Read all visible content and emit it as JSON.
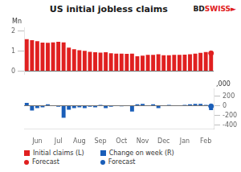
{
  "chart_data": {
    "type": "bar",
    "title": "US initial jobless claims",
    "ylabel": "Mn",
    "y2label": ",000",
    "categories": [
      null,
      null,
      "Jun",
      null,
      null,
      null,
      "Jul",
      null,
      null,
      null,
      "Aug",
      null,
      null,
      null,
      "Sep",
      null,
      null,
      null,
      "Oct",
      null,
      null,
      null,
      "Nov",
      null,
      null,
      null,
      "Dec",
      null,
      null,
      null,
      "Jan",
      null,
      null,
      null,
      "Feb",
      null
    ],
    "series": [
      {
        "name": "Initial claims (L)",
        "type": "bar",
        "color": "#e02020",
        "values": [
          1.6,
          1.55,
          1.5,
          1.43,
          1.42,
          1.44,
          1.47,
          1.44,
          1.18,
          1.1,
          1.05,
          1.02,
          0.97,
          0.95,
          0.93,
          0.95,
          0.9,
          0.88,
          0.88,
          0.87,
          0.88,
          0.75,
          0.78,
          0.82,
          0.82,
          0.85,
          0.8,
          0.8,
          0.82,
          0.82,
          0.83,
          0.85,
          0.88,
          0.92,
          0.96,
          0.9
        ]
      },
      {
        "name": "Change on week (R)",
        "type": "bar",
        "color": "#1a5eb8",
        "axis": "y2",
        "values": [
          60,
          -100,
          -50,
          -30,
          30,
          10,
          -20,
          -250,
          -80,
          -50,
          -30,
          -50,
          -20,
          -30,
          20,
          -50,
          -20,
          10,
          -10,
          10,
          -120,
          30,
          40,
          0,
          30,
          -50,
          0,
          20,
          0,
          10,
          20,
          30,
          40,
          40,
          20,
          -90
        ]
      },
      {
        "name": "Forecast",
        "type": "scatter",
        "marker": "circle",
        "color": "#e02020",
        "values": [
          null,
          null,
          null,
          null,
          null,
          null,
          null,
          null,
          null,
          null,
          null,
          null,
          null,
          null,
          null,
          null,
          null,
          null,
          null,
          null,
          null,
          null,
          null,
          null,
          null,
          null,
          null,
          null,
          null,
          null,
          null,
          null,
          null,
          null,
          null,
          0.9
        ]
      },
      {
        "name": "Forecast",
        "type": "scatter",
        "marker": "circle",
        "color": "#1a5eb8",
        "axis": "y2",
        "values": [
          null,
          null,
          null,
          null,
          null,
          null,
          null,
          null,
          null,
          null,
          null,
          null,
          null,
          null,
          null,
          null,
          null,
          null,
          null,
          null,
          null,
          null,
          null,
          null,
          null,
          null,
          null,
          null,
          null,
          null,
          null,
          null,
          null,
          null,
          null,
          -10
        ]
      }
    ],
    "ylim": [
      -0.15,
      2.2
    ],
    "yticks": [
      0,
      1,
      2
    ],
    "y2lim": [
      -480,
      360
    ],
    "y2ticks": [
      200,
      0,
      -200,
      -400
    ],
    "grid": false,
    "legend": "lower left",
    "annotations": [
      {
        "text": "BD",
        "color": "#1a1a1a"
      },
      {
        "text": "SWISS",
        "color": "#e02020"
      },
      {
        "text": "►",
        "color": "#e02020"
      }
    ]
  }
}
